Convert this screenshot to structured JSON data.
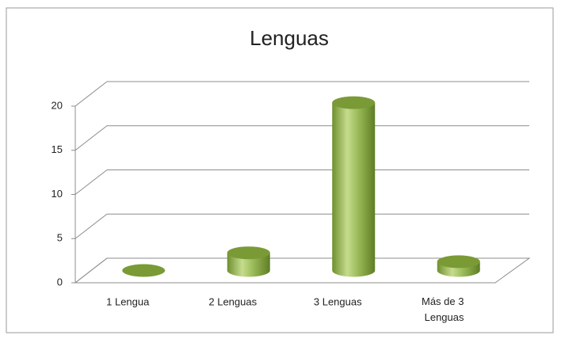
{
  "chart_data": {
    "type": "bar3d",
    "title": "Lenguas",
    "categories": [
      "1 Lengua",
      "2 Lenguas",
      "3 Lenguas",
      "Más de 3 Lenguas"
    ],
    "values": [
      0,
      2,
      19,
      1
    ],
    "color": "#9bbb59",
    "ylim": [
      0,
      20
    ],
    "yticks": [
      0,
      5,
      10,
      15,
      20
    ],
    "grid": true
  }
}
